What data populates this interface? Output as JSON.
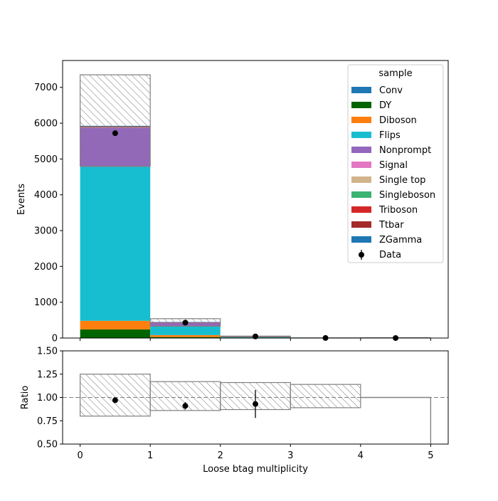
{
  "chart_data": {
    "type": "bar",
    "stacked": true,
    "x_edges": [
      0,
      1,
      2,
      3,
      4,
      5
    ],
    "xlabel": "Loose btag multiplicity",
    "main": {
      "ylabel": "Events",
      "ylim": [
        0,
        7750
      ],
      "yticks": [
        0,
        1000,
        2000,
        3000,
        4000,
        5000,
        6000,
        7000
      ],
      "series": [
        {
          "name": "Conv",
          "color": "#1f77b4",
          "values": [
            10,
            2,
            0,
            0,
            0
          ]
        },
        {
          "name": "DY",
          "color": "#006400",
          "values": [
            230,
            25,
            1,
            0,
            0
          ]
        },
        {
          "name": "Diboson",
          "color": "#ff7f0e",
          "values": [
            240,
            55,
            5,
            0,
            0
          ]
        },
        {
          "name": "Flips",
          "color": "#17becf",
          "values": [
            4300,
            250,
            14,
            1,
            0
          ]
        },
        {
          "name": "Nonprompt",
          "color": "#9467bd",
          "values": [
            1100,
            100,
            12,
            1,
            0
          ]
        },
        {
          "name": "Signal",
          "color": "#e377c2",
          "values": [
            5,
            1,
            0,
            0,
            0
          ]
        },
        {
          "name": "Single top",
          "color": "#d2b48c",
          "values": [
            3,
            4,
            1,
            0,
            0
          ]
        },
        {
          "name": "Singleboson",
          "color": "#3cb371",
          "values": [
            10,
            2,
            0,
            0,
            0
          ]
        },
        {
          "name": "Triboson",
          "color": "#d62728",
          "values": [
            5,
            1,
            0,
            0,
            0
          ]
        },
        {
          "name": "Ttbar",
          "color": "#a52a2a",
          "values": [
            7,
            5,
            2,
            0,
            0
          ]
        },
        {
          "name": "ZGamma",
          "color": "#1f77b4",
          "values": [
            15,
            2,
            0,
            0,
            0
          ]
        }
      ],
      "uncertainty_band": {
        "lower": [
          4800,
          330,
          38,
          3,
          0
        ],
        "upper": [
          7350,
          540,
          54,
          6,
          0
        ]
      },
      "data": {
        "name": "Data",
        "x": [
          0.5,
          1.5,
          2.5,
          3.5,
          4.5
        ],
        "y": [
          5720,
          430,
          45,
          2,
          0
        ],
        "yerr": [
          76,
          21,
          7,
          1.4,
          0
        ]
      },
      "legend": {
        "title": "sample",
        "placement": "top-right"
      }
    },
    "ratio": {
      "ylabel": "Ratio",
      "ylim": [
        0.5,
        1.5
      ],
      "yticks": [
        "0.50",
        "0.75",
        "1.00",
        "1.25",
        "1.50"
      ],
      "ytick_values": [
        0.5,
        0.75,
        1.0,
        1.25,
        1.5
      ],
      "reference_line": 1.0,
      "band_lower": [
        0.8,
        0.86,
        0.87,
        0.89,
        0.5
      ],
      "band_upper": [
        1.25,
        1.17,
        1.16,
        1.14,
        1.0
      ],
      "points": {
        "x": [
          0.5,
          1.5,
          2.5
        ],
        "y": [
          0.97,
          0.91,
          0.93
        ],
        "yerr": [
          0.015,
          0.04,
          0.15
        ]
      }
    },
    "xticks": [
      "0",
      "1",
      "2",
      "3",
      "4",
      "5"
    ],
    "xtick_values": [
      0,
      1,
      2,
      3,
      4,
      5
    ]
  }
}
